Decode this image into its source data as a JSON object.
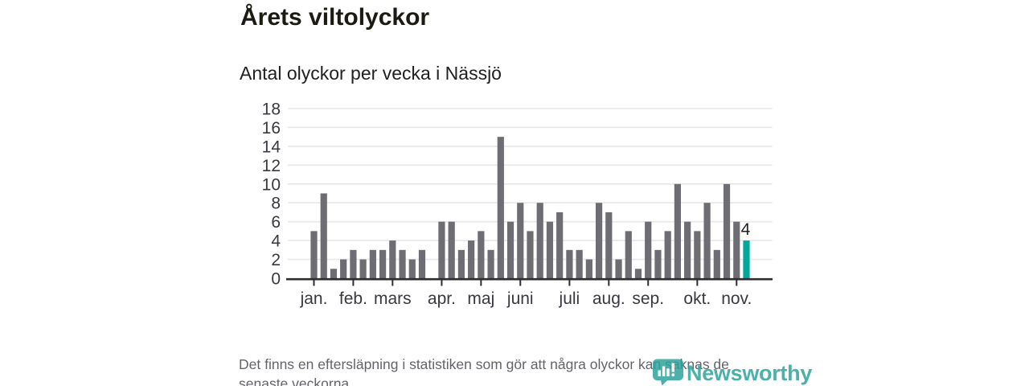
{
  "page": {
    "title": "Årets viltolyckor",
    "subtitle": "Antal olyckor per vecka i Nässjö",
    "footer": {
      "line1": "Det finns en eftersläpning i statistiken som gör att några olyckor kan saknas de",
      "line2": "senaste veckorna."
    },
    "logo": {
      "wordmark": "Newsworthy",
      "icon": "newsworthy-speech-bubble-barchart-icon"
    }
  },
  "chart_data": {
    "type": "bar",
    "title": "Årets viltolyckor",
    "subtitle": "Antal olyckor per vecka i Nässjö",
    "xlabel": "",
    "ylabel": "",
    "ylim": [
      0,
      18
    ],
    "yticks": [
      0,
      2,
      4,
      6,
      8,
      10,
      12,
      14,
      16,
      18
    ],
    "grid": true,
    "legend_position": "none",
    "categories_unit": "vecka",
    "values": [
      5,
      9,
      1,
      2,
      3,
      2,
      3,
      3,
      4,
      3,
      2,
      3,
      0,
      6,
      6,
      3,
      4,
      5,
      3,
      15,
      6,
      8,
      5,
      8,
      6,
      7,
      3,
      3,
      2,
      8,
      7,
      2,
      5,
      1,
      6,
      3,
      5,
      10,
      6,
      5,
      8,
      3,
      10,
      6,
      4
    ],
    "xticks": [
      {
        "label": "jan.",
        "week": 1
      },
      {
        "label": "feb.",
        "week": 5
      },
      {
        "label": "mars",
        "week": 9
      },
      {
        "label": "apr.",
        "week": 14
      },
      {
        "label": "maj",
        "week": 18
      },
      {
        "label": "juni",
        "week": 22
      },
      {
        "label": "juli",
        "week": 27
      },
      {
        "label": "aug.",
        "week": 31
      },
      {
        "label": "sep.",
        "week": 35
      },
      {
        "label": "okt.",
        "week": 40
      },
      {
        "label": "nov.",
        "week": 44
      }
    ],
    "highlight": {
      "index": 44,
      "value": 4,
      "label": "4"
    },
    "colors": {
      "bar": "#6e6d73",
      "highlight": "#00a79b",
      "grid": "#e7e7e7",
      "axis": "#2e2e2e",
      "tick_text": "#38383f",
      "value_label": "#1f1f1f"
    }
  }
}
